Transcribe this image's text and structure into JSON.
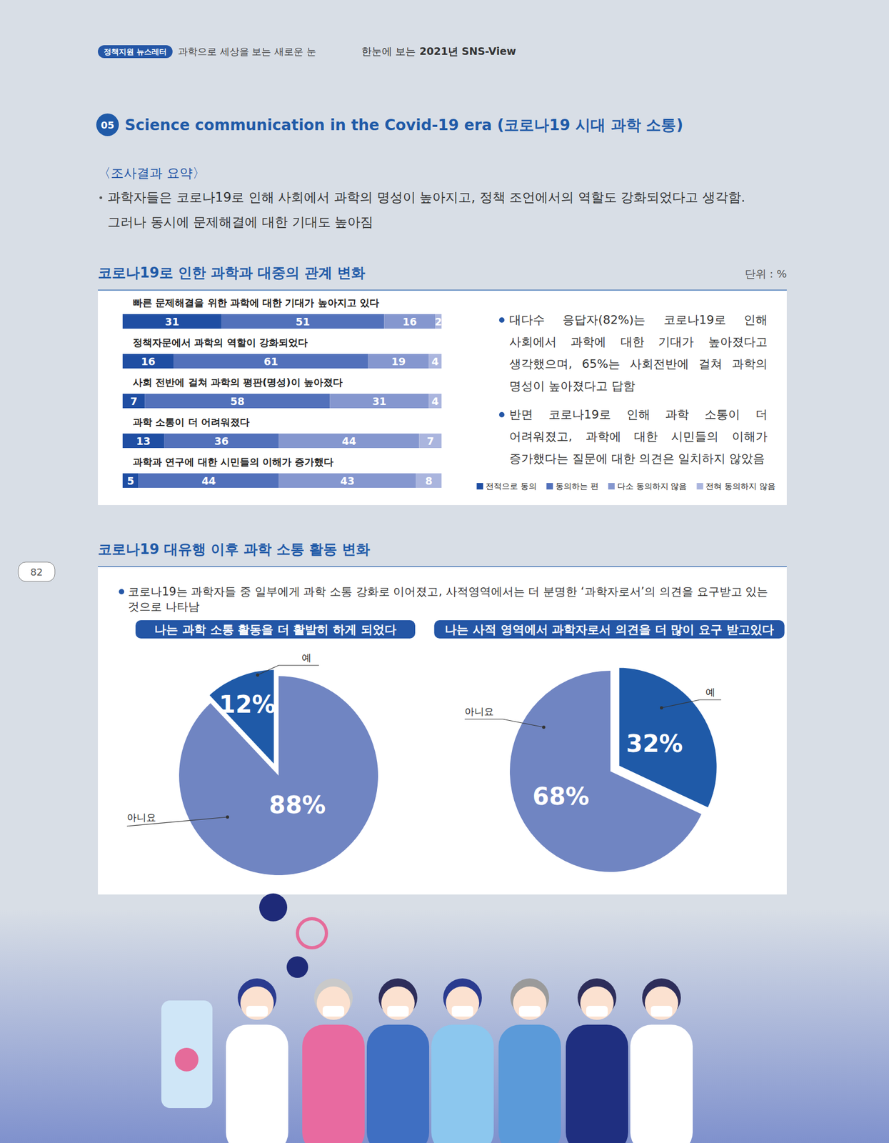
{
  "header": {
    "badge": "정책지원 뉴스레터",
    "tagline": "과학으로 세상을 보는 새로운 눈",
    "right_prefix": "한눈에 보는",
    "right_bold": "2021년 SNS-View"
  },
  "page_number": "82",
  "section": {
    "number": "05",
    "title": "Science communication in the Covid-19 era (코로나19 시대 과학 소통)",
    "summary_heading": "〈조사결과 요약〉",
    "summary": "과학자들은 코로나19로 인해 사회에서 과학의 명성이 높아지고, 정책 조언에서의 역할도 강화되었다고 생각함. 그러나 동시에 문제해결에 대한 기대도 높아짐"
  },
  "panel2": {
    "title": "코로나19 대유행 이후 과학 소통 활동 변화",
    "note": "코로나19는 과학자들 중 일부에게 과학 소통 강화로 이어졌고, 사적영역에서는 더 분명한 ‘과학자로서’의 의견을 요구받고 있는 것으로 나타남"
  },
  "chart_data": [
    {
      "type": "bar",
      "title": "코로나19로 인한 과학과 대중의 관계 변화",
      "subtitle": "단위 : %",
      "orientation": "horizontal",
      "stacked": true,
      "data_labels": true,
      "tick_labels": "y",
      "legend": "bottom-right",
      "xlim": [
        0,
        100
      ],
      "categories": [
        "빠른 문제해결을 위한 과학에 대한 기대가 높아지고 있다",
        "정책자문에서 과학의 역할이 강화되었다",
        "사회 전반에 걸쳐 과학의 평판(명성)이 높아졌다",
        "과학 소통이 더 어려워졌다",
        "과학과 연구에 대한 시민들의 이해가 증가했다"
      ],
      "series": [
        {
          "name": "전적으로 동의",
          "color": "#1f4ea3",
          "values": [
            31,
            16,
            7,
            13,
            5
          ]
        },
        {
          "name": "동의하는 편",
          "color": "#5271bb",
          "values": [
            51,
            61,
            58,
            36,
            44
          ]
        },
        {
          "name": "다소 동의하지 않음",
          "color": "#8597cf",
          "values": [
            16,
            19,
            31,
            44,
            43
          ]
        },
        {
          "name": "전혀 동의하지 않음",
          "color": "#aab5de",
          "values": [
            2,
            4,
            4,
            7,
            8
          ]
        }
      ],
      "annotations": [
        "대다수 응답자(82%)는 코로나19로 인해 사회에서 과학에 대한 기대가 높아졌다고 생각했으며, 65%는 사회전반에 걸쳐 과학의 명성이 높아졌다고 답함",
        "반면 코로나19로 인해 과학 소통이 더 어려워졌고, 과학에 대한 시민들의 이해가 증가했다는 질문에 대한 의견은 일치하지 않았음"
      ]
    },
    {
      "type": "pie",
      "title": "나는 과학 소통 활동을 더 활발히 하게 되었다",
      "data_labels": true,
      "categories": [
        "아니요",
        "예"
      ],
      "values": [
        88,
        12
      ],
      "value_labels": [
        "88%",
        "12%"
      ],
      "colors": [
        "#7085c2",
        "#1f5aa8"
      ]
    },
    {
      "type": "pie",
      "title": "나는 사적 영역에서 과학자로서 의견을 더 많이 요구 받고있다",
      "data_labels": true,
      "categories": [
        "예",
        "아니요"
      ],
      "values": [
        32,
        68
      ],
      "value_labels": [
        "32%",
        "68%"
      ],
      "colors": [
        "#1f5aa8",
        "#7085c2"
      ]
    }
  ]
}
